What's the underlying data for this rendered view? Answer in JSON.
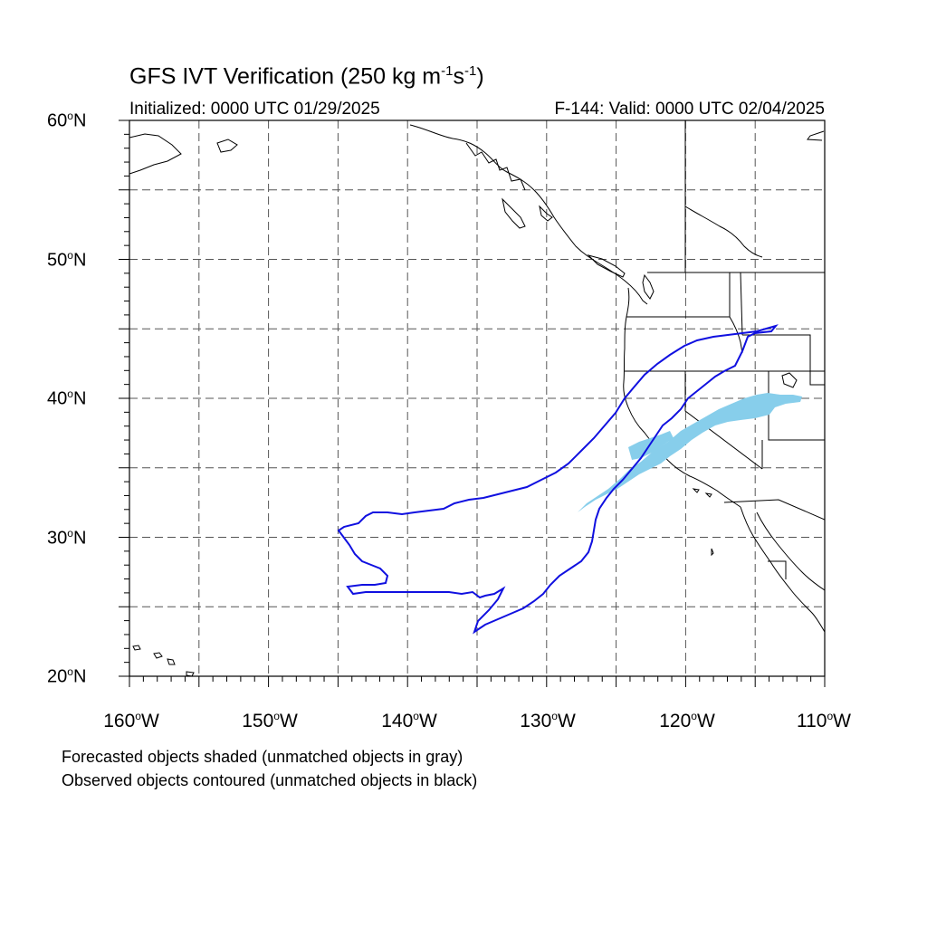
{
  "header": {
    "title_main": "GFS IVT Verification (250 kg m",
    "title_sup1": "-1",
    "title_mid": "s",
    "title_sup2": "-1",
    "title_end": ")",
    "initialized": "Initialized: 0000 UTC 01/29/2025",
    "valid": "F-144: Valid: 0000 UTC 02/04/2025"
  },
  "axes": {
    "degree_symbol": "o",
    "lat_labels": [
      {
        "value": "60",
        "hemi": "N"
      },
      {
        "value": "50",
        "hemi": "N"
      },
      {
        "value": "40",
        "hemi": "N"
      },
      {
        "value": "30",
        "hemi": "N"
      },
      {
        "value": "20",
        "hemi": "N"
      }
    ],
    "lon_labels": [
      {
        "value": "160",
        "hemi": "W"
      },
      {
        "value": "150",
        "hemi": "W"
      },
      {
        "value": "140",
        "hemi": "W"
      },
      {
        "value": "130",
        "hemi": "W"
      },
      {
        "value": "120",
        "hemi": "W"
      },
      {
        "value": "110",
        "hemi": "W"
      }
    ],
    "lat_range": [
      20,
      60
    ],
    "lon_range": [
      -160,
      -110
    ],
    "grid_spacing_deg": 5,
    "grid_style": "dashed"
  },
  "legend": {
    "line1": "Forecasted objects shaded (unmatched objects in gray)",
    "line2": "Observed objects contoured (unmatched objects in black)"
  },
  "colors": {
    "forecast_fill": "#87ceeb",
    "observed_contour": "#1010e0",
    "coastline": "#000000",
    "grid": "#555555"
  }
}
